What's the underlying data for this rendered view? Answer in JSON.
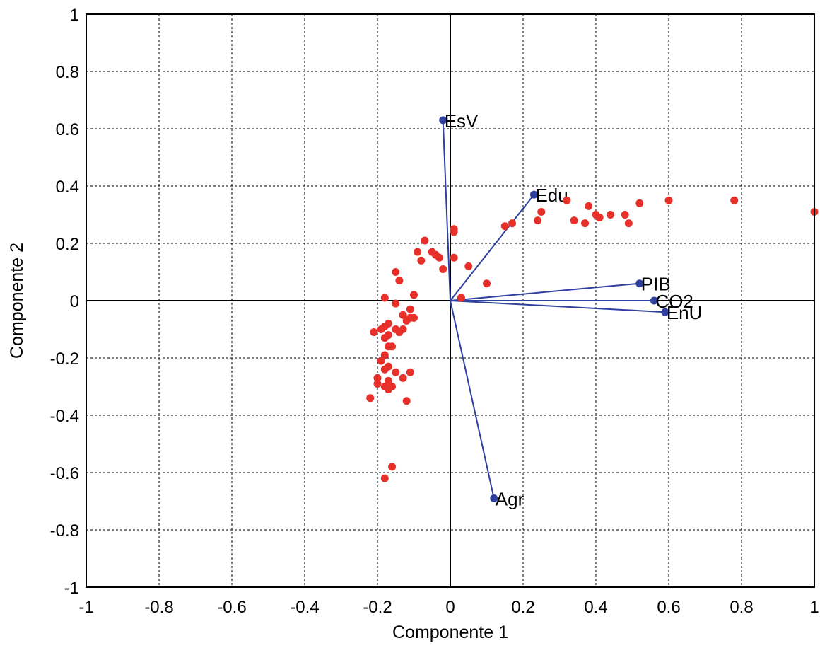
{
  "chart_data": {
    "type": "scatter",
    "xlabel": "Componente 1",
    "ylabel": "Componente 2",
    "xlim": [
      -1,
      1
    ],
    "ylim": [
      -1,
      1
    ],
    "xticks": [
      "-1",
      "-0.8",
      "-0.6",
      "-0.4",
      "-0.2",
      "0",
      "0.2",
      "0.4",
      "0.6",
      "0.8",
      "1"
    ],
    "yticks": [
      "-1",
      "-0.8",
      "-0.6",
      "-0.4",
      "-0.2",
      "0",
      "0.2",
      "0.4",
      "0.6",
      "0.8",
      "1"
    ],
    "grid": true,
    "colors": {
      "vectors": "#2e3f9e",
      "scores": "#e8302a"
    },
    "vectors": [
      {
        "label": "EsV",
        "x": -0.02,
        "y": 0.63
      },
      {
        "label": "Edu",
        "x": 0.23,
        "y": 0.37
      },
      {
        "label": "PIB",
        "x": 0.52,
        "y": 0.06
      },
      {
        "label": "CO2",
        "x": 0.56,
        "y": 0.0
      },
      {
        "label": "EnU",
        "x": 0.59,
        "y": -0.04
      },
      {
        "label": "Agr",
        "x": 0.12,
        "y": -0.69
      }
    ],
    "scores": [
      [
        1.0,
        0.31
      ],
      [
        0.78,
        0.35
      ],
      [
        0.6,
        0.35
      ],
      [
        0.52,
        0.34
      ],
      [
        0.49,
        0.27
      ],
      [
        0.48,
        0.3
      ],
      [
        0.44,
        0.3
      ],
      [
        0.41,
        0.29
      ],
      [
        0.4,
        0.3
      ],
      [
        0.38,
        0.33
      ],
      [
        0.37,
        0.27
      ],
      [
        0.34,
        0.28
      ],
      [
        0.32,
        0.35
      ],
      [
        0.25,
        0.31
      ],
      [
        0.24,
        0.28
      ],
      [
        0.17,
        0.27
      ],
      [
        0.15,
        0.26
      ],
      [
        0.01,
        0.25
      ],
      [
        0.01,
        0.24
      ],
      [
        0.01,
        0.15
      ],
      [
        0.1,
        0.06
      ],
      [
        0.05,
        0.12
      ],
      [
        0.03,
        0.01
      ],
      [
        -0.02,
        0.11
      ],
      [
        -0.07,
        0.21
      ],
      [
        -0.05,
        0.17
      ],
      [
        -0.04,
        0.16
      ],
      [
        -0.03,
        0.15
      ],
      [
        -0.08,
        0.14
      ],
      [
        -0.09,
        0.17
      ],
      [
        -0.15,
        0.1
      ],
      [
        -0.14,
        0.07
      ],
      [
        -0.18,
        0.01
      ],
      [
        -0.1,
        0.02
      ],
      [
        -0.15,
        -0.01
      ],
      [
        -0.11,
        -0.03
      ],
      [
        -0.13,
        -0.05
      ],
      [
        -0.11,
        -0.06
      ],
      [
        -0.12,
        -0.07
      ],
      [
        -0.1,
        -0.06
      ],
      [
        -0.17,
        -0.08
      ],
      [
        -0.18,
        -0.09
      ],
      [
        -0.21,
        -0.11
      ],
      [
        -0.19,
        -0.1
      ],
      [
        -0.17,
        -0.12
      ],
      [
        -0.15,
        -0.1
      ],
      [
        -0.13,
        -0.1
      ],
      [
        -0.14,
        -0.11
      ],
      [
        -0.16,
        -0.16
      ],
      [
        -0.17,
        -0.16
      ],
      [
        -0.18,
        -0.13
      ],
      [
        -0.19,
        -0.21
      ],
      [
        -0.18,
        -0.19
      ],
      [
        -0.18,
        -0.24
      ],
      [
        -0.17,
        -0.23
      ],
      [
        -0.15,
        -0.25
      ],
      [
        -0.11,
        -0.25
      ],
      [
        -0.2,
        -0.27
      ],
      [
        -0.17,
        -0.28
      ],
      [
        -0.2,
        -0.29
      ],
      [
        -0.18,
        -0.3
      ],
      [
        -0.17,
        -0.31
      ],
      [
        -0.16,
        -0.3
      ],
      [
        -0.13,
        -0.27
      ],
      [
        -0.12,
        -0.35
      ],
      [
        -0.22,
        -0.34
      ],
      [
        -0.16,
        -0.58
      ],
      [
        -0.18,
        -0.62
      ]
    ]
  }
}
